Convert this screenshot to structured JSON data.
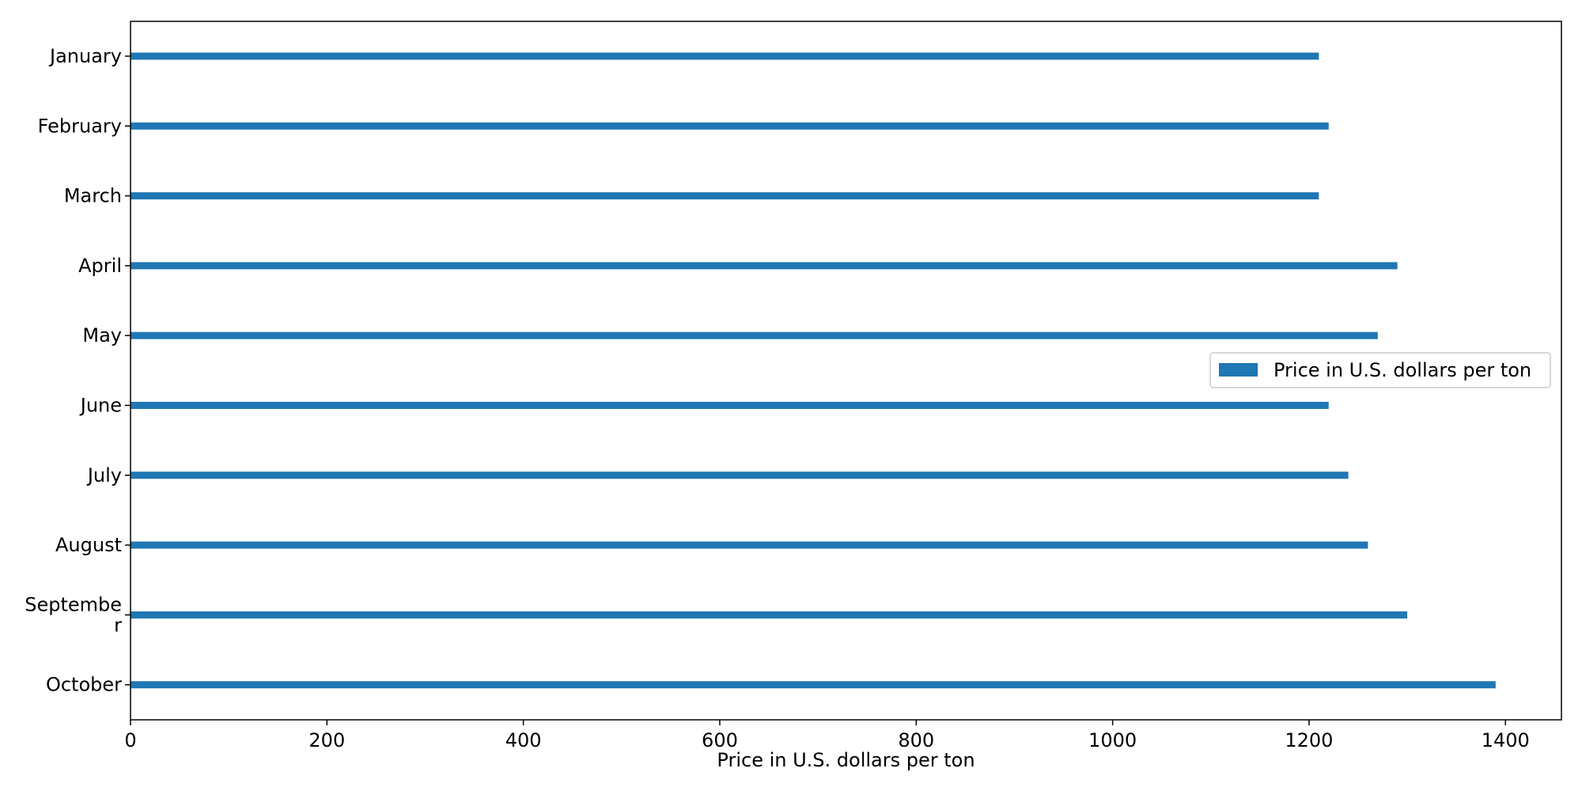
{
  "chart_data": {
    "type": "bar",
    "orientation": "horizontal",
    "categories": [
      "January",
      "February",
      "March",
      "April",
      "May",
      "June",
      "July",
      "August",
      "Septembe\nr",
      "October"
    ],
    "series": [
      {
        "name": "Price in U.S. dollars per ton",
        "values": [
          1210,
          1220,
          1210,
          1290,
          1270,
          1220,
          1240,
          1260,
          1300,
          1390
        ],
        "color": "#1f77b4"
      }
    ],
    "xlabel": "Price in U.S. dollars per ton",
    "ylabel": "",
    "xlim": [
      0,
      1457
    ],
    "xticks": [
      0,
      200,
      400,
      600,
      800,
      1000,
      1200,
      1400
    ],
    "legend_position": "center-right",
    "grid": false
  }
}
